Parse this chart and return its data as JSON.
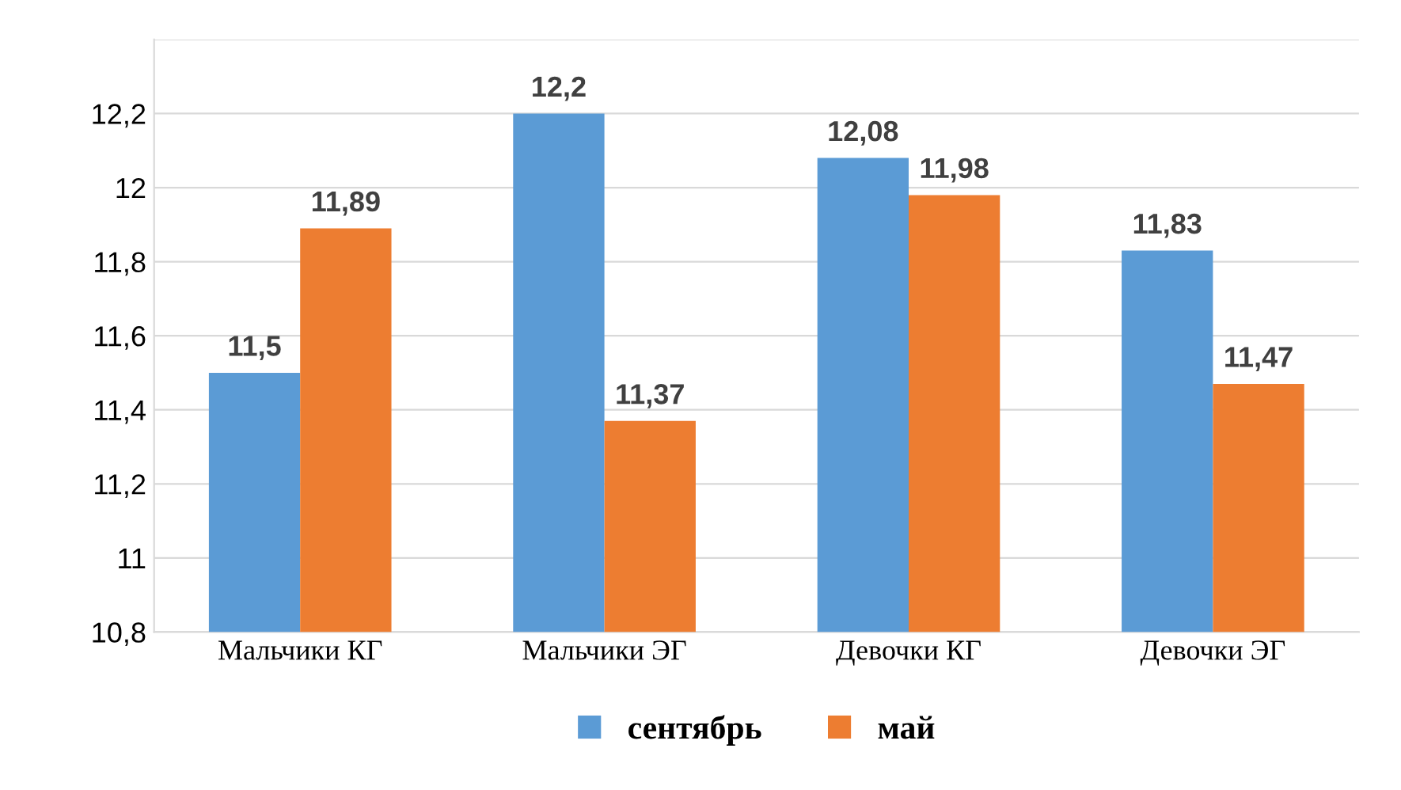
{
  "chart_data": {
    "type": "bar",
    "categories": [
      "Мальчики КГ",
      "Мальчики ЭГ",
      "Девочки КГ",
      "Девочки ЭГ"
    ],
    "series": [
      {
        "name": "сентябрь",
        "color": "#5b9bd5",
        "values": [
          11.5,
          12.2,
          12.08,
          11.83
        ],
        "value_labels": [
          "11,5",
          "12,2",
          "12,08",
          "11,83"
        ]
      },
      {
        "name": "май",
        "color": "#ed7d31",
        "values": [
          11.89,
          11.37,
          11.98,
          11.47
        ],
        "value_labels": [
          "11,89",
          "11,37",
          "11,98",
          "11,47"
        ]
      }
    ],
    "ylim": [
      10.8,
      12.4
    ],
    "yticks": [
      {
        "value": 10.8,
        "label": "10,8"
      },
      {
        "value": 11,
        "label": "11"
      },
      {
        "value": 11.2,
        "label": "11,2"
      },
      {
        "value": 11.4,
        "label": "11,4"
      },
      {
        "value": 11.6,
        "label": "11,6"
      },
      {
        "value": 11.8,
        "label": "11,8"
      },
      {
        "value": 12,
        "label": "12"
      },
      {
        "value": 12.2,
        "label": "12,2"
      },
      {
        "value": 12.4,
        "label": null
      }
    ],
    "grid": "y",
    "legend": "bottom"
  }
}
